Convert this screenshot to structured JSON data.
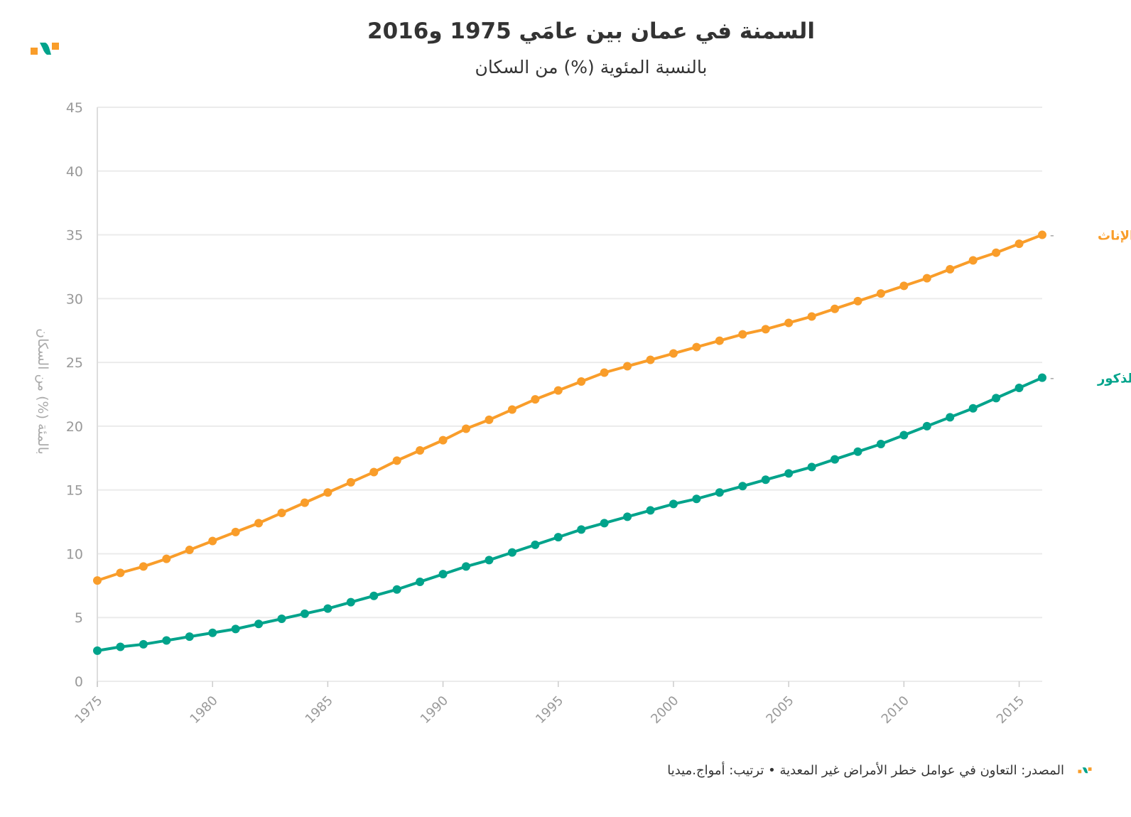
{
  "title": "السمنة في عمان بين عامَي 1975 و2016",
  "subtitle": "بالنسبة المئوية (%) من السكان",
  "footer": "المصدر: التعاون في عوامل خطر الأمراض غير المعدية • ترتيب: أمواج.ميديا",
  "colors": {
    "females": "#f99d2a",
    "males": "#00a38b",
    "grid": "#ebebeb",
    "tick": "#999999"
  },
  "chart_data": {
    "type": "line",
    "title": "السمنة في عمان بين عامَي 1975 و2016",
    "subtitle": "بالنسبة المئوية (%) من السكان",
    "xlabel": "",
    "ylabel": "بالمئة (%) من السكان",
    "ylim": [
      0,
      45
    ],
    "xlim": [
      1975,
      2016
    ],
    "yticks": [
      0,
      5,
      10,
      15,
      20,
      25,
      30,
      35,
      40,
      45
    ],
    "xticks": [
      1975,
      1980,
      1985,
      1990,
      1995,
      2000,
      2005,
      2010,
      2015
    ],
    "grid": true,
    "legend": "inline-right",
    "x": [
      1975,
      1976,
      1977,
      1978,
      1979,
      1980,
      1981,
      1982,
      1983,
      1984,
      1985,
      1986,
      1987,
      1988,
      1989,
      1990,
      1991,
      1992,
      1993,
      1994,
      1995,
      1996,
      1997,
      1998,
      1999,
      2000,
      2001,
      2002,
      2003,
      2004,
      2005,
      2006,
      2007,
      2008,
      2009,
      2010,
      2011,
      2012,
      2013,
      2014,
      2015,
      2016
    ],
    "series": [
      {
        "name": "الإناث",
        "key": "females",
        "values": [
          7.9,
          8.5,
          9.0,
          9.6,
          10.3,
          11.0,
          11.7,
          12.4,
          13.2,
          14.0,
          14.8,
          15.6,
          16.4,
          17.3,
          18.1,
          18.9,
          19.8,
          20.5,
          21.3,
          22.1,
          22.8,
          23.5,
          24.2,
          24.7,
          25.2,
          25.7,
          26.2,
          26.7,
          27.2,
          27.6,
          28.1,
          28.6,
          29.2,
          29.8,
          30.4,
          31.0,
          31.6,
          32.3,
          33.0,
          33.6,
          34.3,
          35.0
        ]
      },
      {
        "name": "الذكور",
        "key": "males",
        "values": [
          2.4,
          2.7,
          2.9,
          3.2,
          3.5,
          3.8,
          4.1,
          4.5,
          4.9,
          5.3,
          5.7,
          6.2,
          6.7,
          7.2,
          7.8,
          8.4,
          9.0,
          9.5,
          10.1,
          10.7,
          11.3,
          11.9,
          12.4,
          12.9,
          13.4,
          13.9,
          14.3,
          14.8,
          15.3,
          15.8,
          16.3,
          16.8,
          17.4,
          18.0,
          18.6,
          19.3,
          20.0,
          20.7,
          21.4,
          22.2,
          23.0,
          23.8
        ]
      }
    ]
  }
}
